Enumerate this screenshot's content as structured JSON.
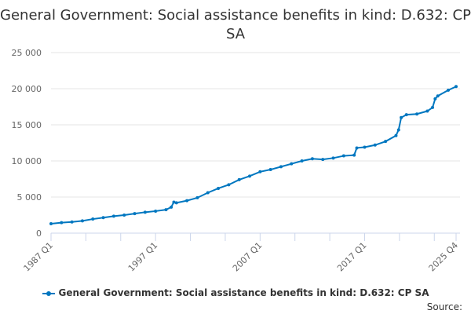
{
  "chart_data": {
    "type": "line",
    "title": "General Government: Social assistance benefits in kind: D.632: CP SA",
    "xlabel": "",
    "ylabel": "",
    "ylim": [
      0,
      25000
    ],
    "yticks": [
      0,
      5000,
      10000,
      15000,
      20000,
      25000
    ],
    "ytick_labels": [
      "0",
      "5 000",
      "10 000",
      "15 000",
      "20 000",
      "25 000"
    ],
    "xlim": [
      1987.0,
      2025.75
    ],
    "xticks": [
      {
        "x": 1987.0,
        "label": "1987 Q1"
      },
      {
        "x": 1997.0,
        "label": "1997 Q1"
      },
      {
        "x": 2007.0,
        "label": "2007 Q1"
      },
      {
        "x": 2017.0,
        "label": "2017 Q1"
      },
      {
        "x": 2025.75,
        "label": "2025 Q4"
      }
    ],
    "grid": true,
    "legend": "bottom",
    "series": [
      {
        "name": "General Government: Social assistance benefits in kind: D.632: CP SA",
        "color": "#0077c0",
        "x": [
          1987,
          1988,
          1989,
          1990,
          1991,
          1992,
          1993,
          1994,
          1995,
          1996,
          1997,
          1998,
          1998.5,
          1998.75,
          1999,
          2000,
          2001,
          2002,
          2003,
          2004,
          2005,
          2006,
          2007,
          2008,
          2009,
          2010,
          2011,
          2012,
          2013,
          2014,
          2015,
          2016,
          2016.25,
          2017,
          2018,
          2019,
          2020,
          2020.25,
          2020.5,
          2021,
          2022,
          2023,
          2023.5,
          2023.75,
          2024,
          2025,
          2025.75
        ],
        "values": [
          1300,
          1450,
          1550,
          1700,
          1950,
          2150,
          2350,
          2500,
          2700,
          2900,
          3050,
          3250,
          3600,
          4300,
          4200,
          4500,
          4900,
          5600,
          6200,
          6700,
          7400,
          7900,
          8500,
          8800,
          9200,
          9600,
          10000,
          10300,
          10200,
          10400,
          10700,
          10800,
          11800,
          11900,
          12200,
          12700,
          13500,
          14300,
          16000,
          16400,
          16500,
          16900,
          17400,
          18600,
          19000,
          19800,
          20300
        ]
      }
    ]
  },
  "footer": {
    "source": "Source:"
  }
}
